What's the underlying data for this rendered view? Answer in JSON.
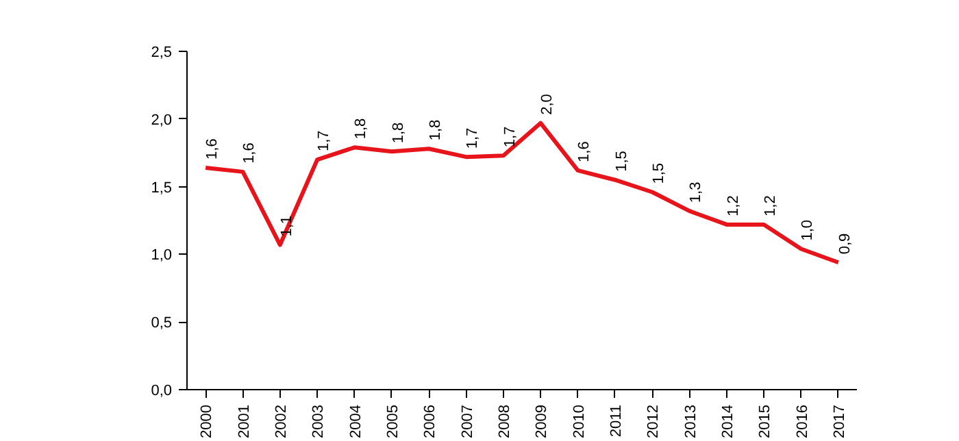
{
  "chart_data": {
    "type": "line",
    "categories": [
      "2000",
      "2001",
      "2002",
      "2003",
      "2004",
      "2005",
      "2006",
      "2007",
      "2008",
      "2009",
      "2010",
      "2011",
      "2012",
      "2013",
      "2014",
      "2015",
      "2016",
      "2017"
    ],
    "series": [
      {
        "color": "#e8141b",
        "values": [
          1.64,
          1.61,
          1.07,
          1.7,
          1.79,
          1.76,
          1.78,
          1.72,
          1.73,
          1.97,
          1.62,
          1.55,
          1.46,
          1.32,
          1.22,
          1.22,
          1.04,
          0.94
        ],
        "value_labels": [
          "1,6",
          "1,6",
          "1,1",
          "1,7",
          "1,8",
          "1,8",
          "1,8",
          "1,7",
          "1,7",
          "2,0",
          "1,6",
          "1,5",
          "1,5",
          "1,3",
          "1,2",
          "1,2",
          "1,0",
          "0,9"
        ]
      }
    ],
    "ylim": [
      0,
      2.5
    ],
    "yticks": [
      {
        "value": 0,
        "label": "0,0"
      },
      {
        "value": 0.5,
        "label": "0,5"
      },
      {
        "value": 1,
        "label": "1,0"
      },
      {
        "value": 1.5,
        "label": "1,5"
      },
      {
        "value": 2,
        "label": "2,0"
      },
      {
        "value": 2.5,
        "label": "2,5"
      }
    ],
    "grid": false,
    "marker": "none",
    "line_style": "solid"
  }
}
